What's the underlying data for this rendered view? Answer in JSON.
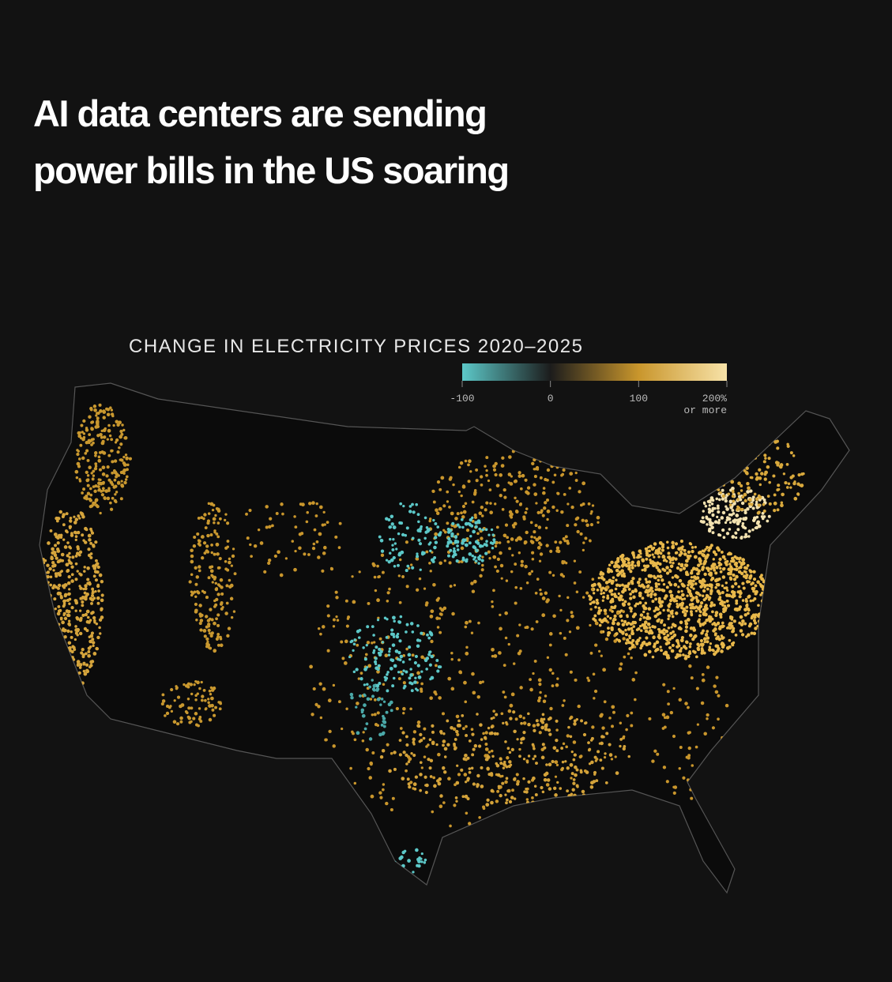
{
  "title": [
    "AI data centers are sending",
    "power bills in the US soaring"
  ],
  "legend": {
    "title": "CHANGE IN ELECTRICITY PRICES 2020–2025",
    "lim": [
      -100,
      200
    ],
    "stops": [
      {
        "value": -100,
        "color": "#5cc8c8"
      },
      {
        "value": 0,
        "color": "#1c1c1c"
      },
      {
        "value": 100,
        "color": "#c9962c"
      },
      {
        "value": 200,
        "color": "#f7e2a8"
      }
    ],
    "ticks": [
      -100,
      0,
      100,
      {
        "value": 200,
        "label": "200% or more"
      }
    ]
  }
}
